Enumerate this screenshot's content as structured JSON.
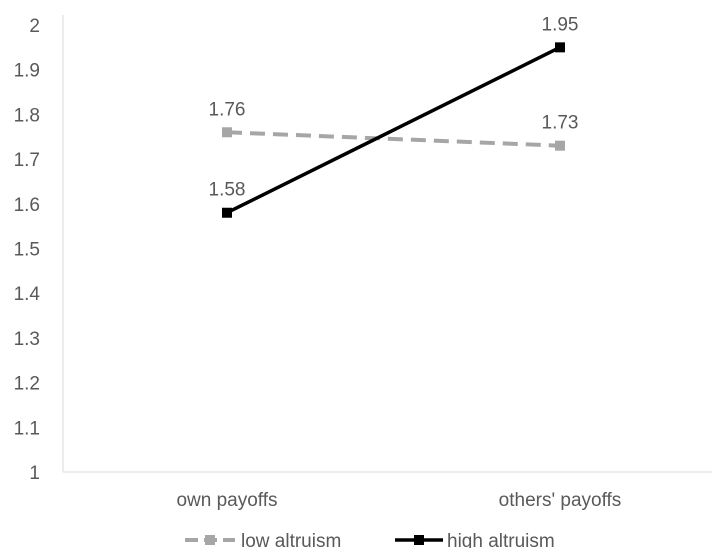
{
  "chart_data": {
    "type": "line",
    "categories": [
      "own payoffs",
      "others' payoffs"
    ],
    "ylim": [
      1,
      2
    ],
    "yticks": [
      1,
      1.1,
      1.2,
      1.3,
      1.4,
      1.5,
      1.6,
      1.7,
      1.8,
      1.9,
      2
    ],
    "ytick_labels": [
      "1",
      "1.1",
      "1.2",
      "1.3",
      "1.4",
      "1.5",
      "1.6",
      "1.7",
      "1.8",
      "1.9",
      "2"
    ],
    "grid": false,
    "legend_position": "bottom",
    "series": [
      {
        "name": "low altruism",
        "values": [
          1.76,
          1.73
        ],
        "labels": [
          "1.76",
          "1.73"
        ],
        "color": "#a6a6a6",
        "style": "dashed",
        "marker": "square"
      },
      {
        "name": "high altruism",
        "values": [
          1.58,
          1.95
        ],
        "labels": [
          "1.58",
          "1.95"
        ],
        "color": "#000000",
        "style": "solid",
        "marker": "square"
      }
    ]
  }
}
